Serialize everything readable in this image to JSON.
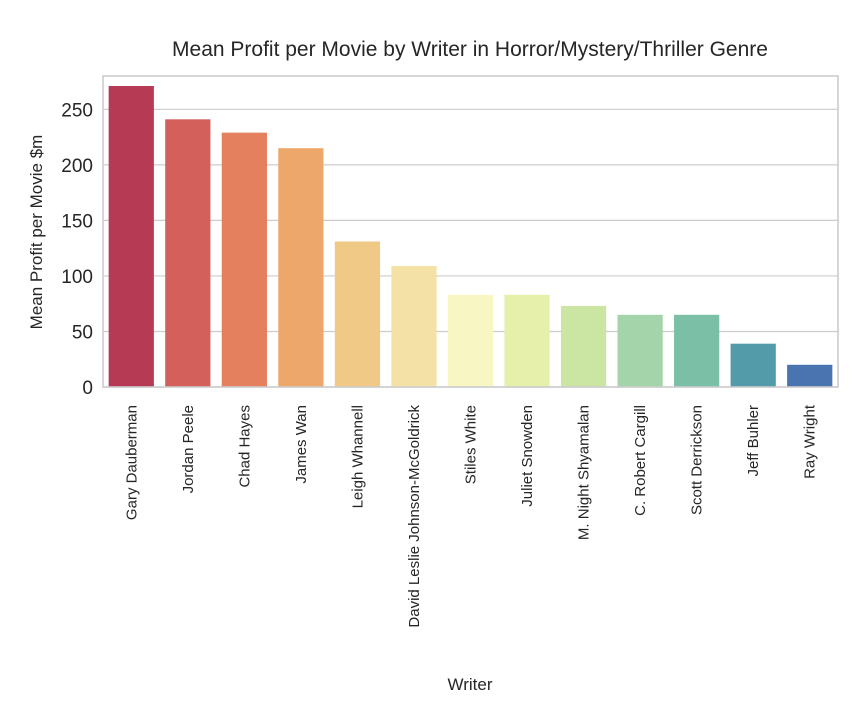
{
  "chart_data": {
    "type": "bar",
    "title": "Mean Profit per Movie by Writer in Horror/Mystery/Thriller Genre",
    "xlabel": "Writer",
    "ylabel": "Mean Profit per Movie $m",
    "ylim": [
      0,
      280
    ],
    "yticks": [
      0,
      50,
      100,
      150,
      200,
      250
    ],
    "grid": true,
    "categories": [
      "Gary Dauberman",
      "Jordan Peele",
      "Chad Hayes",
      "James Wan",
      "Leigh Whannell",
      "David Leslie Johnson-McGoldrick",
      "Stiles White",
      "Juliet Snowden",
      "M. Night Shyamalan",
      "C. Robert Cargill",
      "Scott Derrickson",
      "Jeff Buhler",
      "Ray Wright"
    ],
    "values": [
      271,
      241,
      229,
      215,
      131,
      109,
      83,
      83,
      73,
      65,
      65,
      39,
      20
    ],
    "colors": [
      "#b73a55",
      "#d3605b",
      "#e4805d",
      "#eea76b",
      "#f0c986",
      "#f3e1a5",
      "#f8f6c2",
      "#e6f0aa",
      "#cbe6a2",
      "#a4d4aa",
      "#7bbfa6",
      "#549ba9",
      "#4a74af"
    ]
  }
}
